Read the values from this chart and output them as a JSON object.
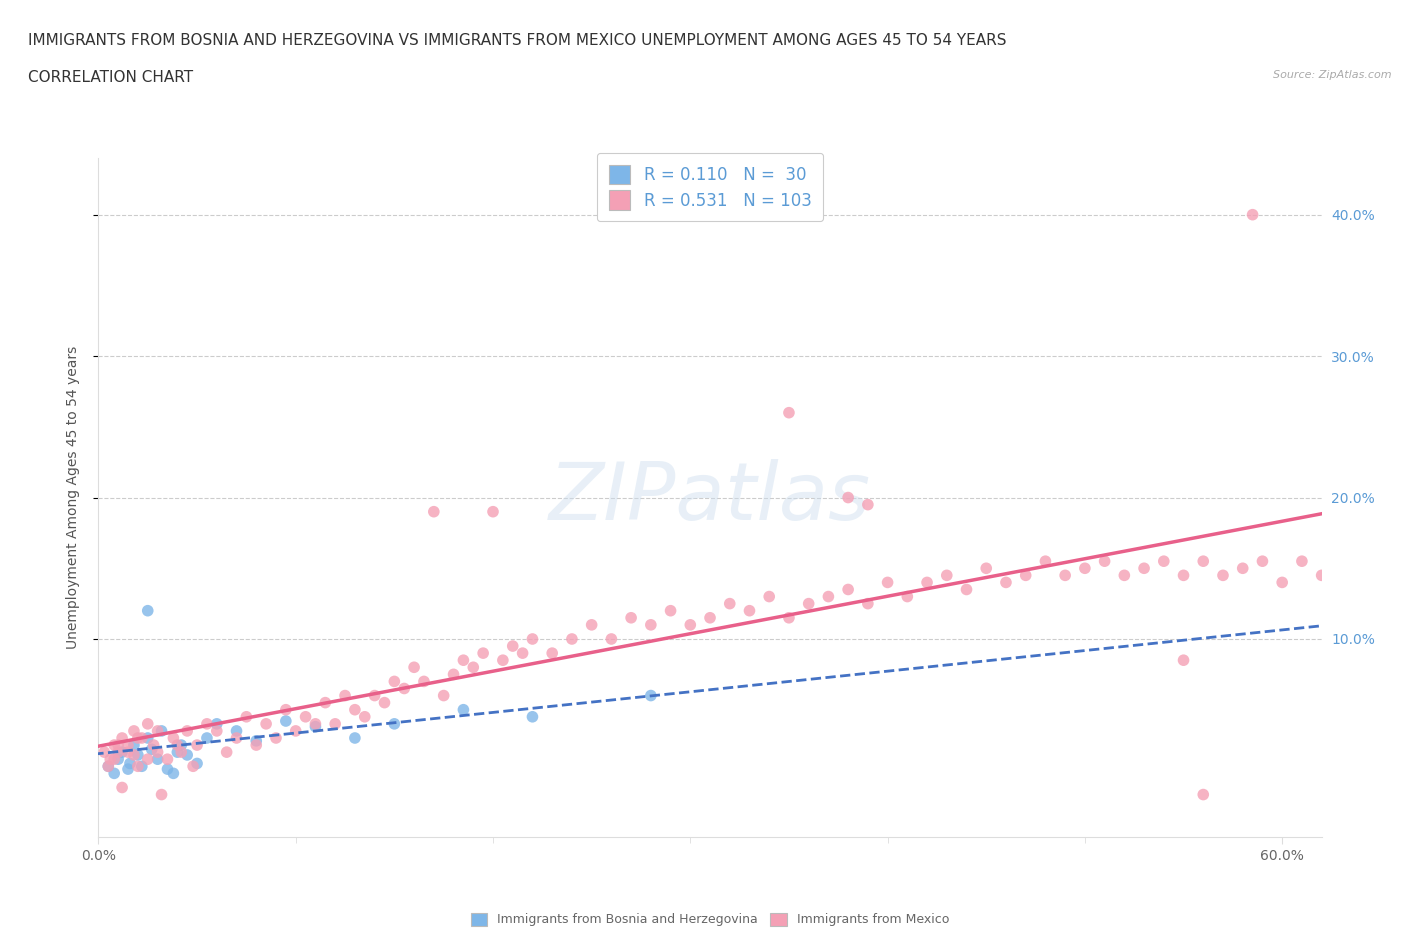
{
  "title_line1": "IMMIGRANTS FROM BOSNIA AND HERZEGOVINA VS IMMIGRANTS FROM MEXICO UNEMPLOYMENT AMONG AGES 45 TO 54 YEARS",
  "title_line2": "CORRELATION CHART",
  "source_text": "Source: ZipAtlas.com",
  "ylabel": "Unemployment Among Ages 45 to 54 years",
  "xlim": [
    0.0,
    0.62
  ],
  "ylim": [
    -0.04,
    0.44
  ],
  "ytick_vals": [
    0.1,
    0.2,
    0.3,
    0.4
  ],
  "xtick_show": [
    0.0,
    0.6
  ],
  "xtick_labels": [
    "0.0%",
    "60.0%"
  ],
  "bosnia_color": "#7eb6e8",
  "mexico_color": "#f4a0b5",
  "bosnia_line_color": "#4472c4",
  "mexico_line_color": "#e8608a",
  "bosnia_R": 0.11,
  "bosnia_N": 30,
  "mexico_R": 0.531,
  "mexico_N": 103,
  "watermark": "ZIPatlas",
  "background_color": "#ffffff",
  "grid_color": "#cccccc",
  "title_fontsize": 11,
  "axis_label_fontsize": 10,
  "tick_fontsize": 10,
  "legend_fontsize": 12,
  "right_tick_color": "#5b9bd5",
  "bosnia_x": [
    0.005,
    0.008,
    0.01,
    0.012,
    0.015,
    0.016,
    0.018,
    0.02,
    0.022,
    0.025,
    0.027,
    0.03,
    0.032,
    0.035,
    0.038,
    0.04,
    0.042,
    0.045,
    0.05,
    0.055,
    0.06,
    0.07,
    0.08,
    0.095,
    0.11,
    0.13,
    0.15,
    0.185,
    0.22,
    0.28
  ],
  "bosnia_y": [
    0.01,
    0.005,
    0.015,
    0.02,
    0.008,
    0.012,
    0.025,
    0.018,
    0.01,
    0.03,
    0.022,
    0.015,
    0.035,
    0.008,
    0.005,
    0.02,
    0.025,
    0.018,
    0.012,
    0.03,
    0.04,
    0.035,
    0.028,
    0.042,
    0.038,
    0.03,
    0.04,
    0.05,
    0.045,
    0.06
  ],
  "bosnia_outlier_x": [
    0.025
  ],
  "bosnia_outlier_y": [
    0.12
  ],
  "mexico_x": [
    0.005,
    0.008,
    0.01,
    0.012,
    0.015,
    0.018,
    0.02,
    0.022,
    0.025,
    0.028,
    0.03,
    0.032,
    0.035,
    0.038,
    0.04,
    0.042,
    0.045,
    0.048,
    0.05,
    0.055,
    0.06,
    0.065,
    0.07,
    0.075,
    0.08,
    0.085,
    0.09,
    0.095,
    0.1,
    0.105,
    0.11,
    0.115,
    0.12,
    0.125,
    0.13,
    0.135,
    0.14,
    0.145,
    0.15,
    0.155,
    0.16,
    0.165,
    0.17,
    0.175,
    0.18,
    0.185,
    0.19,
    0.195,
    0.2,
    0.205,
    0.21,
    0.215,
    0.22,
    0.23,
    0.24,
    0.25,
    0.26,
    0.27,
    0.28,
    0.29,
    0.3,
    0.31,
    0.32,
    0.33,
    0.34,
    0.35,
    0.36,
    0.37,
    0.38,
    0.39,
    0.4,
    0.41,
    0.42,
    0.43,
    0.44,
    0.45,
    0.46,
    0.47,
    0.48,
    0.49,
    0.5,
    0.51,
    0.52,
    0.53,
    0.54,
    0.55,
    0.56,
    0.57,
    0.58,
    0.59,
    0.6,
    0.61,
    0.62,
    0.003,
    0.006,
    0.008,
    0.01,
    0.012,
    0.015,
    0.018,
    0.02,
    0.025,
    0.03
  ],
  "mexico_y": [
    0.01,
    0.015,
    0.025,
    -0.005,
    0.02,
    0.018,
    0.01,
    0.03,
    0.015,
    0.025,
    0.02,
    -0.01,
    0.015,
    0.03,
    0.025,
    0.02,
    0.035,
    0.01,
    0.025,
    0.04,
    0.035,
    0.02,
    0.03,
    0.045,
    0.025,
    0.04,
    0.03,
    0.05,
    0.035,
    0.045,
    0.04,
    0.055,
    0.04,
    0.06,
    0.05,
    0.045,
    0.06,
    0.055,
    0.07,
    0.065,
    0.08,
    0.07,
    0.19,
    0.06,
    0.075,
    0.085,
    0.08,
    0.09,
    0.19,
    0.085,
    0.095,
    0.09,
    0.1,
    0.09,
    0.1,
    0.11,
    0.1,
    0.115,
    0.11,
    0.12,
    0.11,
    0.115,
    0.125,
    0.12,
    0.13,
    0.115,
    0.125,
    0.13,
    0.135,
    0.125,
    0.14,
    0.13,
    0.14,
    0.145,
    0.135,
    0.15,
    0.14,
    0.145,
    0.155,
    0.145,
    0.15,
    0.155,
    0.145,
    0.15,
    0.155,
    0.145,
    0.155,
    0.145,
    0.15,
    0.155,
    0.14,
    0.155,
    0.145,
    0.02,
    0.015,
    0.025,
    0.02,
    0.03,
    0.025,
    0.035,
    0.03,
    0.04,
    0.035
  ],
  "mexico_outlier_x": [
    0.585,
    0.35,
    0.38,
    0.39,
    0.55,
    0.56
  ],
  "mexico_outlier_y": [
    0.4,
    0.26,
    0.2,
    0.195,
    0.085,
    -0.01
  ]
}
